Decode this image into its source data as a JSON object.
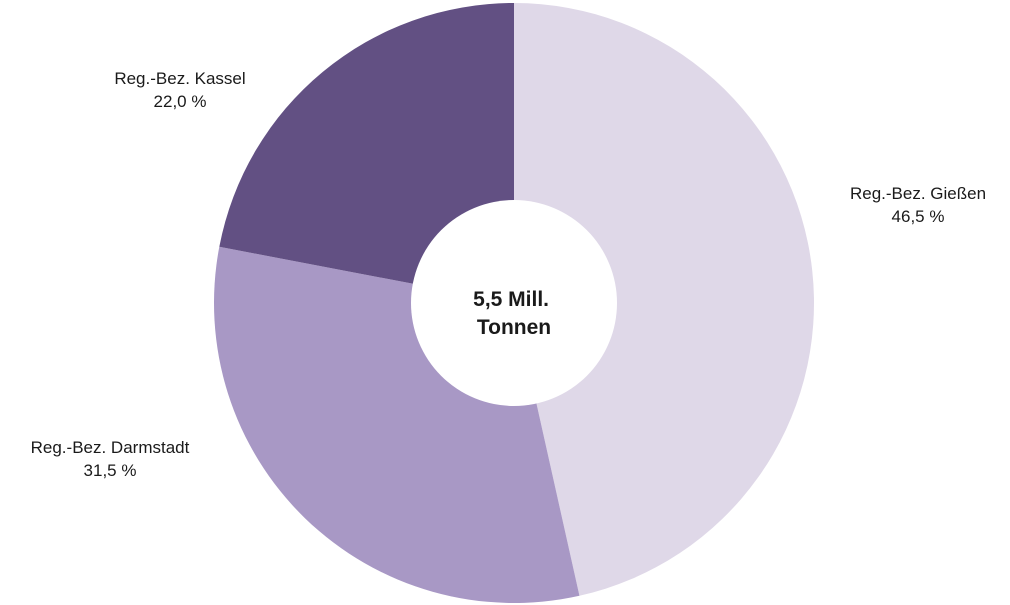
{
  "chart_data": {
    "type": "pie",
    "donut": true,
    "center_label": [
      "5,5 Mill.",
      "Tonnen"
    ],
    "slices": [
      {
        "label": "Reg.-Bez. Gießen",
        "value": 46.5,
        "value_label": "46,5 %",
        "color": "#dfd8e8"
      },
      {
        "label": "Reg.-Bez. Darmstadt",
        "value": 31.5,
        "value_label": "31,5 %",
        "color": "#a898c5"
      },
      {
        "label": "Reg.-Bez. Kassel",
        "value": 22.0,
        "value_label": "22,0 %",
        "color": "#625083"
      }
    ],
    "start_angle_deg": 0,
    "direction": "clockwise",
    "legend": "none"
  }
}
